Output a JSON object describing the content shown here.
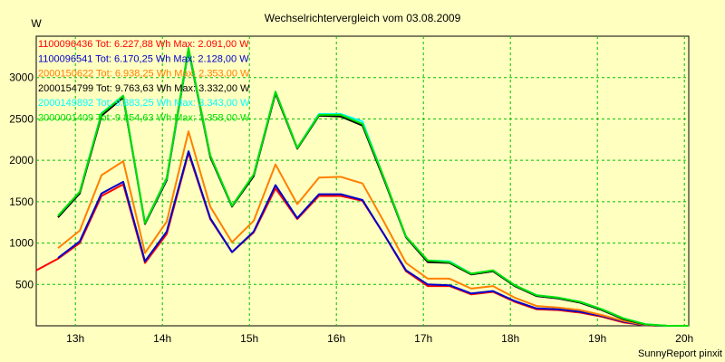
{
  "chart_data": {
    "type": "line",
    "title": "Wechselrichtervergleich vom 03.08.2009",
    "ylabel": "W",
    "xlabel": "",
    "footer": "SunnyReport pinxit",
    "ylim": [
      0,
      3500
    ],
    "xlim": [
      12.55,
      20.05
    ],
    "yticks": [
      500,
      1000,
      1500,
      2000,
      2500,
      3000
    ],
    "xticks": [
      13,
      14,
      15,
      16,
      17,
      18,
      19,
      20
    ],
    "xtick_labels": [
      "13h",
      "14h",
      "15h",
      "16h",
      "17h",
      "18h",
      "19h",
      "20h"
    ],
    "grid": true,
    "legend_position": "top-left",
    "series": [
      {
        "name": "1100096436",
        "legend": "1100096436 Tot: 6.227,88 Wh Max: 2.091,00 W",
        "color": "#ff0000",
        "x": [
          12.55,
          12.8,
          13.05,
          13.3,
          13.55,
          13.8,
          14.05,
          14.3,
          14.55,
          14.8,
          15.05,
          15.3,
          15.55,
          15.8,
          16.05,
          16.3,
          16.55,
          16.8,
          17.05,
          17.3,
          17.55,
          17.8,
          18.05,
          18.3,
          18.55,
          18.8,
          19.05,
          19.3,
          19.55,
          19.8,
          20.05
        ],
        "values": [
          670,
          810,
          1000,
          1570,
          1710,
          760,
          1110,
          2090,
          1290,
          890,
          1130,
          1660,
          1290,
          1570,
          1570,
          1510,
          1100,
          660,
          480,
          480,
          380,
          410,
          290,
          200,
          190,
          160,
          110,
          40,
          5,
          0,
          0
        ]
      },
      {
        "name": "1100096541",
        "legend": "1100096541 Tot: 6.170,25 Wh Max: 2.128,00 W",
        "color": "#0000cc",
        "x": [
          12.8,
          13.05,
          13.3,
          13.55,
          13.8,
          14.05,
          14.3,
          14.55,
          14.8,
          15.05,
          15.3,
          15.55,
          15.8,
          16.05,
          16.3,
          16.55,
          16.8,
          17.05,
          17.3,
          17.55,
          17.8,
          18.05,
          18.3,
          18.55,
          18.8,
          19.05,
          19.3,
          19.55,
          19.8,
          20.05
        ],
        "values": [
          820,
          1020,
          1600,
          1740,
          780,
          1140,
          2110,
          1300,
          890,
          1140,
          1700,
          1300,
          1590,
          1590,
          1520,
          1100,
          670,
          500,
          490,
          390,
          420,
          300,
          210,
          200,
          170,
          120,
          50,
          5,
          0,
          0
        ]
      },
      {
        "name": "2000150622",
        "legend": "2000150622 Tot: 6.938,25 Wh Max: 2.353,00 W",
        "color": "#ff8000",
        "x": [
          12.8,
          13.05,
          13.3,
          13.55,
          13.8,
          14.05,
          14.3,
          14.55,
          14.8,
          15.05,
          15.3,
          15.55,
          15.8,
          16.05,
          16.3,
          16.55,
          16.8,
          17.05,
          17.3,
          17.55,
          17.8,
          18.05,
          18.3,
          18.55,
          18.8,
          19.05,
          19.3,
          19.55,
          19.8,
          20.05
        ],
        "values": [
          940,
          1150,
          1820,
          1990,
          880,
          1260,
          2350,
          1440,
          1010,
          1270,
          1950,
          1470,
          1790,
          1800,
          1720,
          1250,
          760,
          570,
          570,
          450,
          480,
          340,
          240,
          220,
          190,
          130,
          60,
          10,
          0,
          0
        ]
      },
      {
        "name": "2000154799",
        "legend": "2000154799 Tot: 9.763,63 Wh Max: 3.332,00 W",
        "color": "#000000",
        "x": [
          12.8,
          13.05,
          13.3,
          13.55,
          13.8,
          14.05,
          14.3,
          14.55,
          14.8,
          15.05,
          15.3,
          15.55,
          15.8,
          16.05,
          16.3,
          16.55,
          16.8,
          17.05,
          17.3,
          17.55,
          17.8,
          18.05,
          18.3,
          18.55,
          18.8,
          19.05,
          19.3,
          19.55,
          19.8,
          20.05
        ],
        "values": [
          1310,
          1600,
          2540,
          2760,
          1230,
          1760,
          3330,
          2040,
          1440,
          1810,
          2810,
          2140,
          2540,
          2530,
          2420,
          1760,
          1070,
          770,
          760,
          620,
          660,
          480,
          360,
          330,
          280,
          190,
          80,
          15,
          0,
          0
        ]
      },
      {
        "name": "2000149892",
        "legend": "2000149892 Tot: 9.883,25 Wh Max: 3.343,00 W",
        "color": "#00ffff",
        "x": [
          12.8,
          13.05,
          13.3,
          13.55,
          13.8,
          14.05,
          14.3,
          14.55,
          14.8,
          15.05,
          15.3,
          15.55,
          15.8,
          16.05,
          16.3,
          16.55,
          16.8,
          17.05,
          17.3,
          17.55,
          17.8,
          18.05,
          18.3,
          18.55,
          18.8,
          19.05,
          19.3,
          19.55,
          19.8,
          20.05
        ],
        "values": [
          1330,
          1620,
          2570,
          2780,
          1240,
          1780,
          3340,
          2060,
          1450,
          1830,
          2830,
          2150,
          2560,
          2560,
          2470,
          1780,
          1080,
          790,
          780,
          630,
          670,
          490,
          370,
          340,
          290,
          200,
          90,
          20,
          0,
          0
        ]
      },
      {
        "name": "2000001409",
        "legend": "2000001409 Tot: 9.854,63 Wh Max: 3.358,00 W",
        "color": "#00e000",
        "x": [
          12.8,
          13.05,
          13.3,
          13.55,
          13.8,
          14.05,
          14.3,
          14.55,
          14.8,
          15.05,
          15.3,
          15.55,
          15.8,
          16.05,
          16.3,
          16.55,
          16.8,
          17.05,
          17.3,
          17.55,
          17.8,
          18.05,
          18.3,
          18.55,
          18.8,
          19.05,
          19.3,
          19.55,
          19.8,
          20.05
        ],
        "values": [
          1330,
          1620,
          2560,
          2780,
          1240,
          1790,
          3358,
          2060,
          1450,
          1830,
          2830,
          2150,
          2550,
          2550,
          2440,
          1780,
          1080,
          790,
          770,
          630,
          670,
          490,
          370,
          340,
          290,
          200,
          90,
          20,
          0,
          0
        ]
      }
    ]
  }
}
